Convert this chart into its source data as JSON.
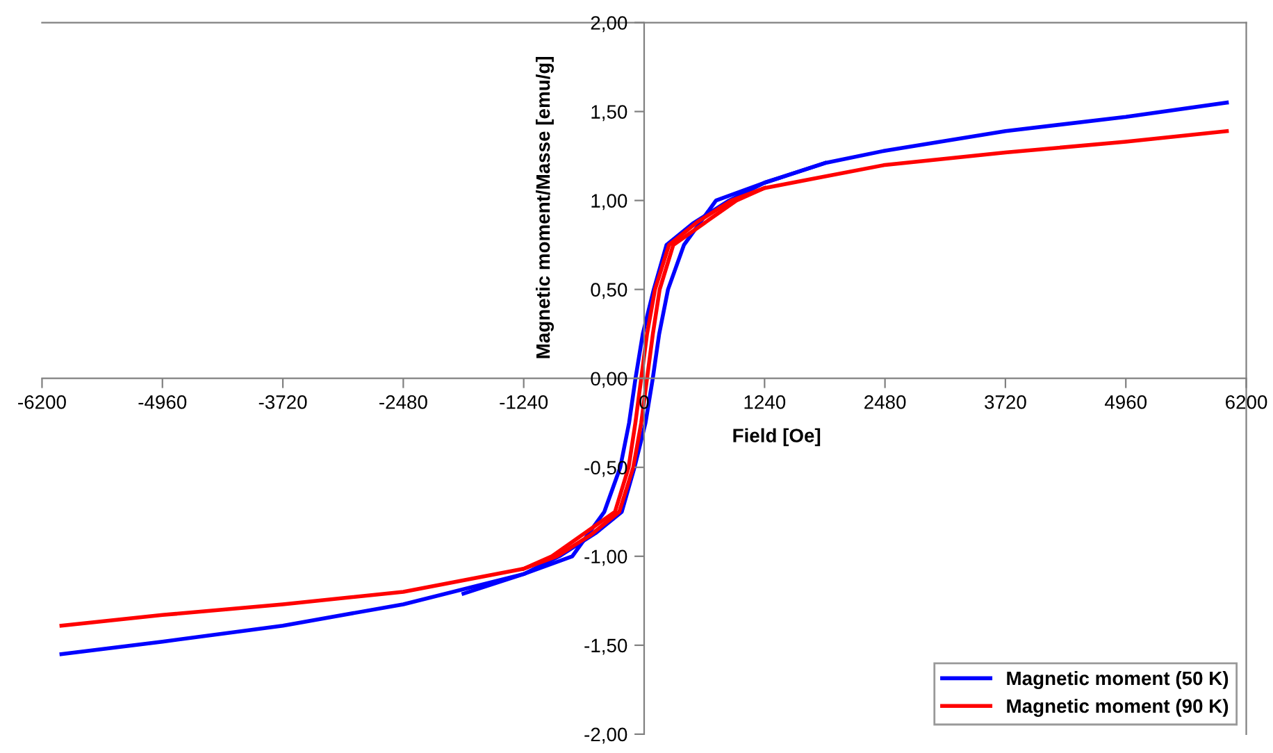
{
  "chart_data": {
    "type": "line",
    "xlabel": "Field [Oe]",
    "ylabel": "Magnetic moment/Masse [emu/g]",
    "xlim": [
      -6200,
      6200
    ],
    "xticks": [
      -6200,
      -4960,
      -3720,
      -2480,
      -1240,
      0,
      1240,
      2480,
      3720,
      4960,
      6200
    ],
    "ylim": [
      -2,
      2
    ],
    "yticks": [
      {
        "value": -2,
        "label": "-2,00"
      },
      {
        "value": -1.5,
        "label": "-1,50"
      },
      {
        "value": -1,
        "label": "-1,00"
      },
      {
        "value": -0.5,
        "label": "-0,50"
      },
      {
        "value": 0,
        "label": "0,00"
      },
      {
        "value": 0.5,
        "label": "0,50"
      },
      {
        "value": 1,
        "label": "1,00"
      },
      {
        "value": 1.5,
        "label": "1,50"
      },
      {
        "value": 2,
        "label": "2,00"
      }
    ],
    "grid": false,
    "legend": "bottom right",
    "marker": "none",
    "line_style": "solid",
    "series": [
      {
        "name": "Magnetic moment (50 K)",
        "color": "#0000ff",
        "x": [
          6000,
          4960,
          3720,
          2480,
          1860,
          1240,
          875,
          500,
          230,
          99,
          -14,
          -89,
          -155,
          -246,
          -410,
          -740,
          -1240,
          -2480,
          -3720,
          -4960,
          -6000
        ],
        "values": [
          1.55,
          1.47,
          1.39,
          1.28,
          1.21,
          1.1,
          1.0,
          0.87,
          0.75,
          0.5,
          0.25,
          0,
          -0.25,
          -0.5,
          -0.75,
          -1.0,
          -1.1,
          -1.27,
          -1.39,
          -1.48,
          -1.55
        ]
      },
      {
        "color": "#0000ff",
        "x": [
          -1860,
          -1240,
          -875,
          -500,
          -230,
          -99,
          14,
          89,
          155,
          246,
          410,
          740,
          1240,
          1860
        ],
        "values": [
          -1.21,
          -1.1,
          -1.0,
          -0.87,
          -0.75,
          -0.5,
          -0.25,
          0,
          0.25,
          0.5,
          0.75,
          1.0,
          1.1,
          1.21
        ]
      },
      {
        "name": "Magnetic moment (90 K)",
        "color": "#ff0000",
        "x": [
          6000,
          4960,
          3720,
          2480,
          1240,
          900,
          550,
          256,
          112,
          30,
          -30,
          -90,
          -160,
          -300,
          -950,
          -1240,
          -2480,
          -3720,
          -4960,
          -6000
        ],
        "values": [
          1.39,
          1.33,
          1.27,
          1.2,
          1.07,
          1.0,
          0.88,
          0.75,
          0.5,
          0.25,
          0,
          -0.25,
          -0.5,
          -0.75,
          -1.0,
          -1.07,
          -1.2,
          -1.27,
          -1.33,
          -1.39
        ]
      },
      {
        "color": "#ff0000",
        "x": [
          -1240,
          -900,
          -550,
          -256,
          -112,
          -30,
          30,
          90,
          160,
          300,
          950,
          1240
        ],
        "values": [
          -1.07,
          -1.0,
          -0.88,
          -0.75,
          -0.5,
          -0.25,
          0,
          0.25,
          0.5,
          0.75,
          1.0,
          1.07
        ]
      }
    ]
  }
}
